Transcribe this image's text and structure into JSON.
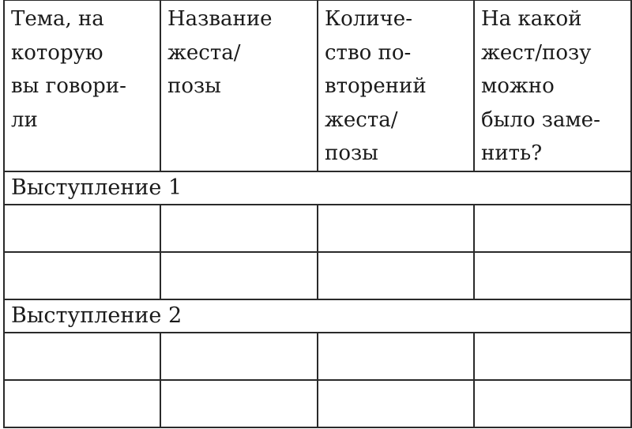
{
  "table": {
    "headers": [
      [
        "Тема, на",
        "которую",
        "вы говори-",
        "ли"
      ],
      [
        "Название",
        "жеста/",
        "позы"
      ],
      [
        "Количе-",
        "ство по-",
        "вторений",
        "жеста/",
        "позы"
      ],
      [
        "На какой",
        "жест/позу",
        "можно",
        "было заме-",
        "нить?"
      ]
    ],
    "sections": [
      {
        "title": "Выступление 1",
        "rows": [
          [
            "",
            "",
            "",
            ""
          ],
          [
            "",
            "",
            "",
            ""
          ]
        ]
      },
      {
        "title": "Выступление 2",
        "rows": [
          [
            "",
            "",
            "",
            ""
          ],
          [
            "",
            "",
            "",
            ""
          ]
        ]
      }
    ]
  }
}
